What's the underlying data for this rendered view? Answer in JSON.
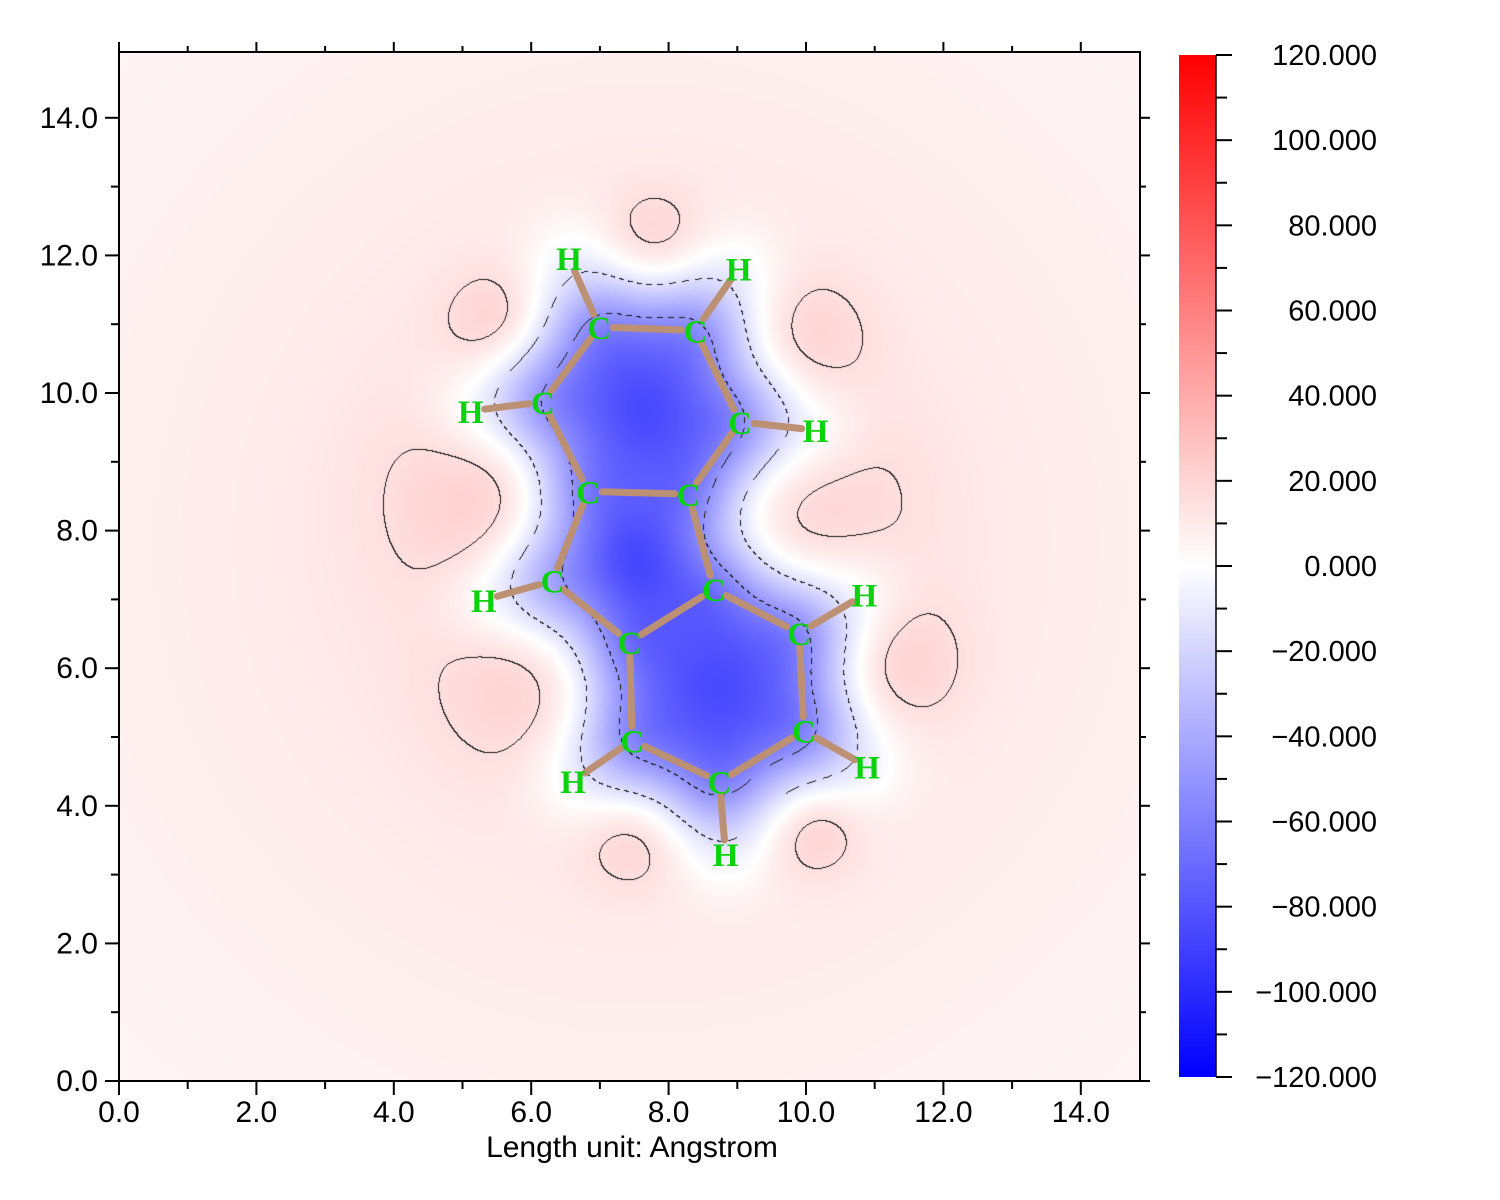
{
  "figure": {
    "xlabel": "Length unit: Angstrom"
  },
  "chart_data": {
    "type": "heatmap",
    "subtype": "filled-contour-potential-map-with-molecule",
    "title": "",
    "xlabel": "Length unit: Angstrom",
    "ylabel": "",
    "grid": false,
    "x_range": [
      0.0,
      14.86
    ],
    "y_range": [
      0.0,
      14.96
    ],
    "x_major_ticks": [
      0,
      2,
      4,
      6,
      8,
      10,
      12,
      14
    ],
    "x_major_tick_labels": [
      "0.0",
      "2.0",
      "4.0",
      "6.0",
      "8.0",
      "10.0",
      "12.0",
      "14.0"
    ],
    "x_minor_ticks": [
      1,
      3,
      5,
      7,
      9,
      11,
      13
    ],
    "y_major_ticks": [
      0,
      2,
      4,
      6,
      8,
      10,
      12,
      14
    ],
    "y_major_tick_labels": [
      "0.0",
      "2.0",
      "4.0",
      "6.0",
      "8.0",
      "10.0",
      "12.0",
      "14.0"
    ],
    "y_minor_ticks": [
      1,
      3,
      5,
      7,
      9,
      11,
      13
    ],
    "colormap": {
      "vmin": -120,
      "vmax": 120,
      "negative": "#0000ff",
      "zero": "#ffffff",
      "positive": "#ff0000"
    },
    "colorbar": {
      "min": -120,
      "max": 120,
      "major_step": 20,
      "minor_step": 10,
      "tick_values": [
        120,
        100,
        80,
        60,
        40,
        20,
        0,
        -20,
        -40,
        -60,
        -80,
        -100,
        -120
      ],
      "tick_labels": [
        "120.000",
        "100.000",
        "80.000",
        "60.000",
        "40.000",
        "20.000",
        "0.000",
        "−20.000",
        "−40.000",
        "−60.000",
        "−80.000",
        "−100.000",
        "−120.000"
      ]
    },
    "contours": {
      "negative_dashed_levels": [
        -15,
        -50,
        -90,
        -118
      ],
      "positive_solid_levels": [
        15
      ]
    },
    "molecule": {
      "bond_color": "#bc9073",
      "atom_label_color": "#0bd30b",
      "atoms": [
        {
          "el": "C",
          "x": 6.99,
          "y": 10.96
        },
        {
          "el": "C",
          "x": 8.39,
          "y": 10.91
        },
        {
          "el": "C",
          "x": 6.17,
          "y": 9.87
        },
        {
          "el": "C",
          "x": 9.04,
          "y": 9.58
        },
        {
          "el": "C",
          "x": 6.83,
          "y": 8.57
        },
        {
          "el": "C",
          "x": 8.29,
          "y": 8.53
        },
        {
          "el": "C",
          "x": 6.31,
          "y": 7.27
        },
        {
          "el": "C",
          "x": 8.66,
          "y": 7.15
        },
        {
          "el": "C",
          "x": 7.43,
          "y": 6.38
        },
        {
          "el": "C",
          "x": 9.9,
          "y": 6.51
        },
        {
          "el": "C",
          "x": 7.47,
          "y": 4.95
        },
        {
          "el": "C",
          "x": 9.97,
          "y": 5.09
        },
        {
          "el": "C",
          "x": 8.74,
          "y": 4.35
        },
        {
          "el": "H",
          "x": 6.55,
          "y": 11.96
        },
        {
          "el": "H",
          "x": 9.02,
          "y": 11.81
        },
        {
          "el": "H",
          "x": 5.12,
          "y": 9.74
        },
        {
          "el": "H",
          "x": 10.14,
          "y": 9.46
        },
        {
          "el": "H",
          "x": 5.31,
          "y": 6.99
        },
        {
          "el": "H",
          "x": 10.85,
          "y": 7.07
        },
        {
          "el": "H",
          "x": 6.61,
          "y": 4.36
        },
        {
          "el": "H",
          "x": 10.89,
          "y": 4.57
        },
        {
          "el": "H",
          "x": 8.83,
          "y": 3.3
        }
      ],
      "bonds": [
        [
          0,
          1
        ],
        [
          0,
          2
        ],
        [
          1,
          3
        ],
        [
          2,
          4
        ],
        [
          3,
          5
        ],
        [
          4,
          5
        ],
        [
          4,
          6
        ],
        [
          5,
          7
        ],
        [
          6,
          8
        ],
        [
          7,
          8
        ],
        [
          7,
          9
        ],
        [
          8,
          10
        ],
        [
          9,
          11
        ],
        [
          10,
          12
        ],
        [
          11,
          12
        ],
        [
          0,
          13
        ],
        [
          1,
          14
        ],
        [
          2,
          15
        ],
        [
          3,
          16
        ],
        [
          6,
          17
        ],
        [
          9,
          18
        ],
        [
          10,
          19
        ],
        [
          11,
          20
        ],
        [
          12,
          21
        ]
      ]
    },
    "field_model": {
      "background": {
        "x": 7.6,
        "y": 7.8,
        "amp": 11,
        "sigma": 5.5,
        "base": 3
      },
      "atom_wells": {
        "C": {
          "amp": -45,
          "sigma": 0.58
        },
        "H": {
          "amp": -10,
          "sigma": 0.5
        }
      },
      "ring_wells": [
        {
          "x": 7.62,
          "y": 9.74,
          "amp": -85,
          "sigma": 0.8
        },
        {
          "x": 7.5,
          "y": 7.58,
          "amp": -72,
          "sigma": 0.62
        },
        {
          "x": 8.7,
          "y": 5.74,
          "amp": -85,
          "sigma": 0.85
        }
      ],
      "positive_bumps": [
        {
          "x": 7.79,
          "y": 12.25,
          "amp": 10,
          "sigma": 0.5
        },
        {
          "x": 5.49,
          "y": 11.04,
          "amp": 11,
          "sigma": 0.5
        },
        {
          "x": 10.06,
          "y": 10.85,
          "amp": 9,
          "sigma": 0.6
        },
        {
          "x": 5.4,
          "y": 8.44,
          "amp": 11,
          "sigma": 1.0
        },
        {
          "x": 10.25,
          "y": 8.3,
          "amp": 7,
          "sigma": 1.0
        },
        {
          "x": 5.76,
          "y": 5.68,
          "amp": 8,
          "sigma": 0.8
        },
        {
          "x": 11.37,
          "y": 6.09,
          "amp": 10.5,
          "sigma": 0.66
        },
        {
          "x": 7.49,
          "y": 3.49,
          "amp": 10,
          "sigma": 0.5
        },
        {
          "x": 10.1,
          "y": 3.65,
          "amp": 12,
          "sigma": 0.48
        }
      ]
    }
  }
}
